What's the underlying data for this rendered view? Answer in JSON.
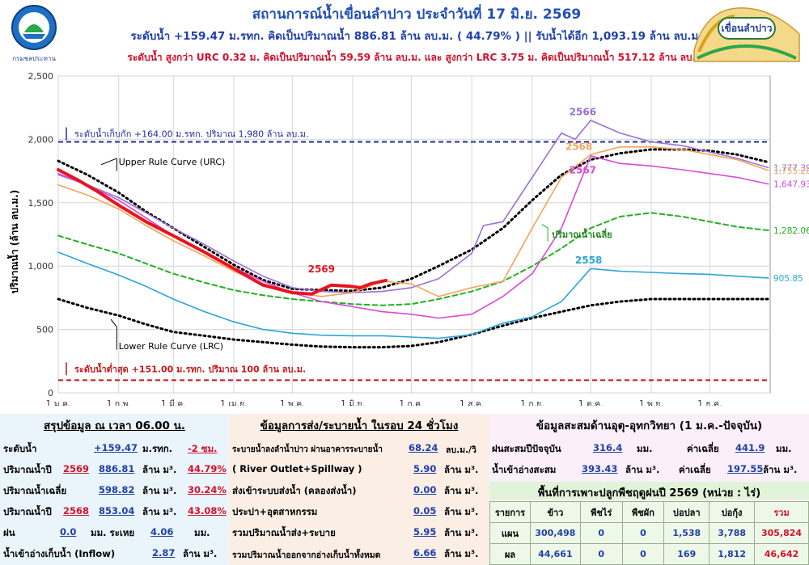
{
  "header": {
    "title": "สถานการณ์น้ำเขื่อนลำปาว ประจำวันที่ 17 มิ.ย. 2569",
    "line2": "ระดับน้ำ +159.47 ม.รทก.  คิดเป็นปริมาณน้ำ 886.81 ล้าน ลบ.ม. ( 44.79% )  || รับน้ำได้อีก 1,093.19 ล้าน ลบ.ม.",
    "line3": "ระดับน้ำ สูงกว่า URC 0.32 ม. คิดเป็นปริมาณน้ำ 59.59 ล้าน ลบ.ม. และ สูงกว่า LRC 3.75 ม. คิดเป็นปริมาณน้ำ 517.12 ล้าน ลบ.ม.",
    "logo_caption": "กรมชลประทาน",
    "dam_logo_text": "เขื่อนลำปาว"
  },
  "chart_data": {
    "type": "line",
    "ylabel": "ปริมาณน้ำ (ล้าน ลบ.ม.)",
    "ylim": [
      0,
      2500
    ],
    "yticks": [
      "0",
      "500",
      "1,000",
      "1,500",
      "2,000",
      "2,500"
    ],
    "xticks": [
      "1 ม.ค.",
      "1 ก.พ.",
      "1 มี.ค.",
      "1 เม.ย.",
      "1 พ.ค.",
      "1 มิ.ย.",
      "1 ก.ค.",
      "1 ส.ค.",
      "1 ก.ย.",
      "1 ต.ค.",
      "1 พ.ย.",
      "1 ธ.ค."
    ],
    "grid": true,
    "reference_lines": [
      {
        "label": "ระดับน้ำเก็บกัก  +164.00 ม.รทก. ปริมาณ 1,980 ล้าน ลบ.ม.",
        "value": 1980,
        "color": "#1f2f99"
      },
      {
        "label": "ระดับน้ำต่ำสุด  +151.00  ม.รทก. ปริมาณ 100 ล้าน ลบ.ม.",
        "value": 100,
        "color": "#c81818"
      }
    ],
    "annotations": {
      "urc": "Upper Rule Curve (URC)",
      "lrc": "Lower Rule Curve (LRC)",
      "avg": "ปริมาณน้ำเฉลี่ย"
    },
    "series": [
      {
        "name": "Upper Rule Curve (URC)",
        "color": "#000000",
        "style": "dotted",
        "x": [
          0,
          15,
          31,
          45,
          59,
          75,
          90,
          105,
          120,
          135,
          151,
          166,
          181,
          195,
          212,
          228,
          243,
          258,
          273,
          288,
          304,
          320,
          334,
          348,
          364
        ],
        "y": [
          1830,
          1720,
          1580,
          1430,
          1300,
          1150,
          1010,
          890,
          820,
          810,
          805,
          830,
          900,
          1000,
          1130,
          1300,
          1520,
          1720,
          1840,
          1890,
          1920,
          1920,
          1910,
          1880,
          1820
        ]
      },
      {
        "name": "Lower Rule Curve (LRC)",
        "color": "#000000",
        "style": "dotted",
        "x": [
          0,
          15,
          31,
          45,
          59,
          75,
          90,
          105,
          120,
          135,
          151,
          166,
          181,
          195,
          212,
          228,
          243,
          258,
          273,
          288,
          304,
          320,
          334,
          348,
          364
        ],
        "y": [
          740,
          670,
          610,
          540,
          480,
          450,
          420,
          400,
          380,
          365,
          360,
          360,
          370,
          400,
          460,
          530,
          590,
          640,
          690,
          720,
          740,
          740,
          740,
          740,
          740
        ]
      },
      {
        "name": "ปริมาณน้ำเฉลี่ย",
        "color": "#22b022",
        "style": "dashed",
        "end_label": "1,282.06",
        "x": [
          0,
          15,
          31,
          45,
          59,
          75,
          90,
          105,
          120,
          135,
          151,
          166,
          181,
          195,
          212,
          228,
          243,
          258,
          273,
          288,
          304,
          320,
          334,
          348,
          364
        ],
        "y": [
          1240,
          1170,
          1100,
          1020,
          940,
          870,
          810,
          770,
          740,
          720,
          700,
          690,
          700,
          740,
          800,
          880,
          1000,
          1140,
          1300,
          1390,
          1420,
          1390,
          1350,
          1310,
          1282
        ]
      },
      {
        "name": "2558",
        "color": "#2aa5d8",
        "style": "solid",
        "end_label": "905.85",
        "x": [
          0,
          15,
          31,
          45,
          59,
          75,
          90,
          105,
          120,
          135,
          151,
          166,
          181,
          195,
          212,
          228,
          243,
          258,
          273,
          288,
          304,
          320,
          334,
          348,
          364
        ],
        "y": [
          1110,
          1020,
          930,
          840,
          740,
          640,
          560,
          500,
          470,
          455,
          450,
          450,
          440,
          430,
          460,
          550,
          600,
          720,
          980,
          960,
          950,
          940,
          935,
          920,
          906
        ]
      },
      {
        "name": "2566",
        "color": "#9b6fd6",
        "style": "solid",
        "end_label": "1,777.39",
        "x": [
          0,
          15,
          31,
          45,
          59,
          75,
          90,
          105,
          120,
          135,
          151,
          166,
          181,
          195,
          212,
          218,
          228,
          243,
          258,
          265,
          273,
          288,
          304,
          320,
          334,
          348,
          364
        ],
        "y": [
          1720,
          1640,
          1540,
          1420,
          1300,
          1170,
          1040,
          920,
          830,
          800,
          790,
          800,
          830,
          900,
          1100,
          1320,
          1350,
          1700,
          2050,
          2000,
          2150,
          2050,
          1980,
          1950,
          1900,
          1850,
          1777
        ]
      },
      {
        "name": "2567",
        "color": "#d94ad9",
        "style": "solid",
        "end_label": "1,647.93",
        "x": [
          0,
          15,
          31,
          45,
          59,
          75,
          90,
          105,
          120,
          135,
          151,
          166,
          181,
          195,
          212,
          228,
          243,
          258,
          273,
          288,
          304,
          320,
          334,
          348,
          364
        ],
        "y": [
          1730,
          1640,
          1520,
          1380,
          1240,
          1110,
          990,
          880,
          790,
          720,
          680,
          640,
          620,
          590,
          620,
          760,
          940,
          1300,
          1870,
          1810,
          1790,
          1760,
          1730,
          1700,
          1648
        ]
      },
      {
        "name": "2568",
        "color": "#f4a35a",
        "style": "solid",
        "end_label": "1,755.20",
        "x": [
          0,
          15,
          31,
          45,
          59,
          75,
          90,
          105,
          120,
          135,
          151,
          166,
          181,
          195,
          212,
          228,
          243,
          258,
          273,
          288,
          304,
          320,
          334,
          348,
          364
        ],
        "y": [
          1640,
          1560,
          1450,
          1320,
          1200,
          1080,
          960,
          860,
          790,
          760,
          790,
          880,
          860,
          760,
          830,
          880,
          1300,
          1700,
          1880,
          1940,
          1940,
          1920,
          1880,
          1840,
          1755
        ]
      },
      {
        "name": "2569",
        "color": "#e8141e",
        "style": "solid",
        "bold": true,
        "x": [
          0,
          10,
          20,
          31,
          45,
          59,
          75,
          90,
          105,
          120,
          130,
          140,
          150,
          155,
          160,
          168
        ],
        "y": [
          1760,
          1680,
          1590,
          1480,
          1350,
          1240,
          1110,
          980,
          850,
          790,
          780,
          850,
          840,
          830,
          860,
          887
        ]
      }
    ]
  },
  "panel1": {
    "title": "สรุปข้อมูล ณ เวลา 06.00 น.",
    "rows": [
      {
        "label": "ระดับน้ำ",
        "value": "+159.47",
        "unit": "ม.รทก.",
        "value2": "-2 ซม."
      },
      {
        "label": "ปริมาณน้ำปี",
        "year": "2569",
        "value": "886.81",
        "unit": "ล้าน ม³.",
        "value2": "44.79%"
      },
      {
        "label": "ปริมาณน้ำเฉลี่ย",
        "value": "598.82",
        "unit": "ล้าน ม³.",
        "value2": "30.24%"
      },
      {
        "label": "ปริมาณน้ำปี",
        "year": "2568",
        "value": "853.04",
        "unit": "ล้าน ม³.",
        "value2": "43.08%"
      },
      {
        "label": "ฝน",
        "value": "0.0",
        "unit": "มม. ระเหย",
        "value2": "4.06",
        "unit2": "มม."
      },
      {
        "label": "น้ำเข้าอ่างเก็บน้ำ (Inflow)",
        "value": "2.87",
        "unit": "ล้าน ม³."
      }
    ]
  },
  "panel2": {
    "title": "ข้อมูลการส่ง/ระบายน้ำ ในรอบ 24 ชั่วโมง",
    "rows": [
      {
        "label": "ระบายน้ำลงลำน้ำปาว ผ่านอาคารระบายน้ำ",
        "value": "68.24",
        "unit": "ลบ.ม./วิ"
      },
      {
        "label": "( River Outlet+Spillway )",
        "value": "5.90",
        "unit": "ล้าน ม³."
      },
      {
        "label": "ส่งเข้าระบบส่งน้ำ (คลองส่งน้ำ)",
        "value": "0.00",
        "unit": "ล้าน ม³."
      },
      {
        "label": "ประปา+อุตสาหกรรม",
        "value": "0.05",
        "unit": "ล้าน ม³."
      },
      {
        "label": "รวมปริมาณน้ำส่ง+ระบาย",
        "value": "5.95",
        "unit": "ล้าน ม³."
      },
      {
        "label": "รวมปริมาณน้ำออกจากอ่างเก็บน้ำทั้งหมด",
        "value": "6.66",
        "unit": "ล้าน ม³."
      }
    ]
  },
  "panel3": {
    "title": "ข้อมูลสะสมด้านอุตุ-อุทกวิทยา (1 ม.ค.-ปัจจุบัน)",
    "row1": {
      "label": "ฝนสะสมปีปัจจุบัน",
      "value": "316.4",
      "unit": "มม.",
      "avg_label": "ค่าเฉลี่ย",
      "avg": "441.9",
      "avg_unit": "มม."
    },
    "row2": {
      "label": "น้ำเข้าอ่างสะสม",
      "value": "393.43",
      "unit": "ล้าน ม³.",
      "avg_label": "ค่าเฉลี่ย",
      "avg": "197.55",
      "avg_unit": "ล้าน ม³."
    },
    "crop_title": "พื้นที่การเพาะปลูกพืชฤดูฝนปี 2569 (หน่วย : ไร่)",
    "crop_headers": [
      "รายการ",
      "ข้าว",
      "พืชไร่",
      "พืชผัก",
      "บ่อปลา",
      "บ่อกุ้ง",
      "รวม"
    ],
    "crop_rows": [
      [
        "แผน",
        "300,498",
        "0",
        "0",
        "1,538",
        "3,788",
        "305,824"
      ],
      [
        "ผล",
        "44,661",
        "0",
        "0",
        "169",
        "1,812",
        "46,642"
      ]
    ]
  }
}
